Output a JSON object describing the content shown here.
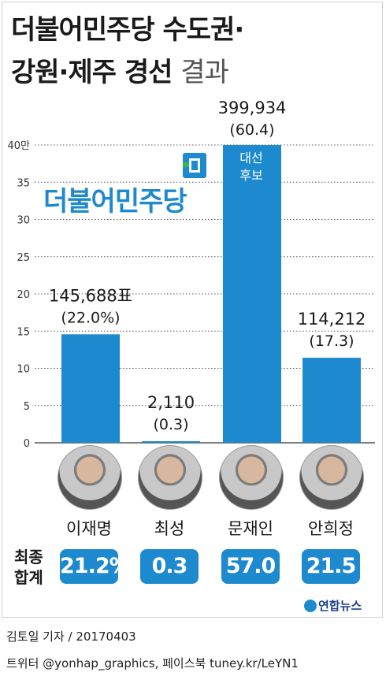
{
  "header": {
    "title_line1": "더불어민주당 수도권·",
    "title_line2_bold": "강원·제주 경선",
    "title_line2_light": "결과"
  },
  "logo": {
    "text": "더불어민주당"
  },
  "annotation": {
    "winner_line1": "대선",
    "winner_line2": "후보"
  },
  "chart_data": {
    "type": "bar",
    "categories": [
      "이재명",
      "최성",
      "문재인",
      "안희정"
    ],
    "values": [
      145688,
      2110,
      399934,
      114212
    ],
    "value_labels": [
      "145,688표",
      "2,110",
      "399,934",
      "114,212"
    ],
    "pct_labels": [
      "(22.0%)",
      "(0.3)",
      "(60.4)",
      "(17.3)"
    ],
    "yticks": [
      "0",
      "5",
      "10",
      "15",
      "20",
      "25",
      "30",
      "35",
      "40만"
    ],
    "ylim": [
      0,
      400000
    ],
    "grid": true,
    "bar_color": "#1d89cf"
  },
  "final": {
    "label_line1": "최종",
    "label_line2": "합계",
    "values": [
      "21.2%",
      "0.3",
      "57.0",
      "21.5"
    ]
  },
  "credits": {
    "agency": "연합뉴스",
    "line1": "김토일 기자 / 20170403",
    "line2": "트위터 @yonhap_graphics, 페이스북 tuney.kr/LeYN1"
  }
}
